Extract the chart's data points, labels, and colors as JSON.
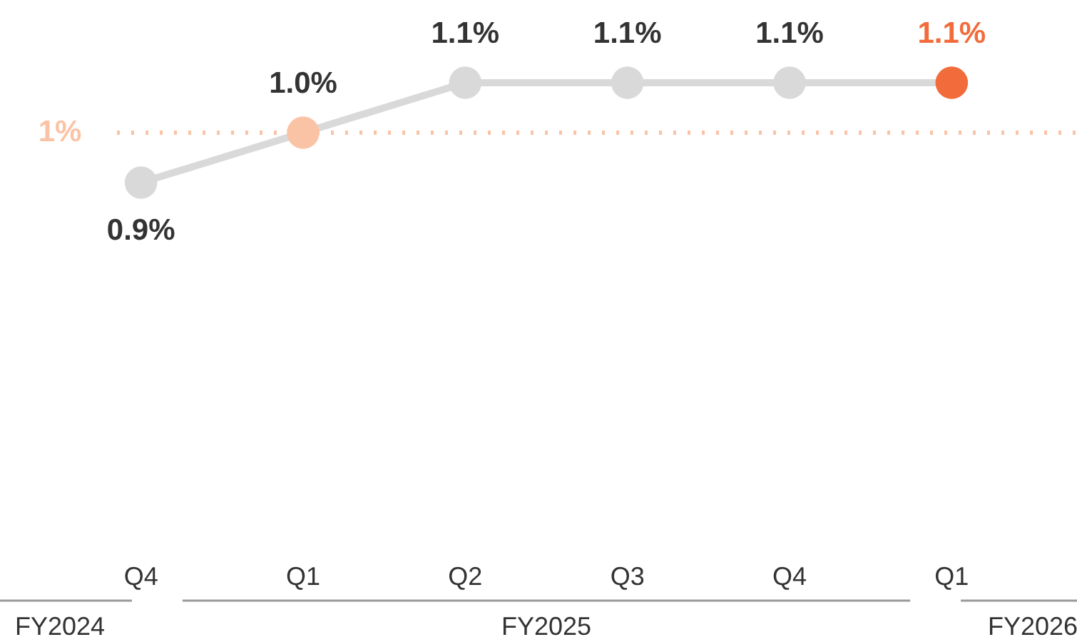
{
  "chart_data": {
    "type": "line",
    "categories": [
      "Q4",
      "Q1",
      "Q2",
      "Q3",
      "Q4",
      "Q1"
    ],
    "series": [
      {
        "color": "#d9d9d9",
        "colors": [
          "#d9d9d9",
          "#fbc3a6",
          "#d9d9d9",
          "#d9d9d9",
          "#d9d9d9",
          "#f26b3a"
        ],
        "values": [
          0.9,
          1.0,
          1.1,
          1.1,
          1.1,
          1.1
        ],
        "value_labels": [
          "0.9%",
          "1.0%",
          "1.1%",
          "1.1%",
          "1.1%",
          "1.1%"
        ]
      }
    ],
    "ref_lines": [
      {
        "axis": "y",
        "value": 1,
        "label": "1%",
        "color": "#fbc3a6",
        "line_style": "dotted"
      }
    ],
    "annotations": [
      "FY2024",
      "FY2025",
      "FY2026"
    ],
    "marker": "circle",
    "line_style": "solid"
  }
}
